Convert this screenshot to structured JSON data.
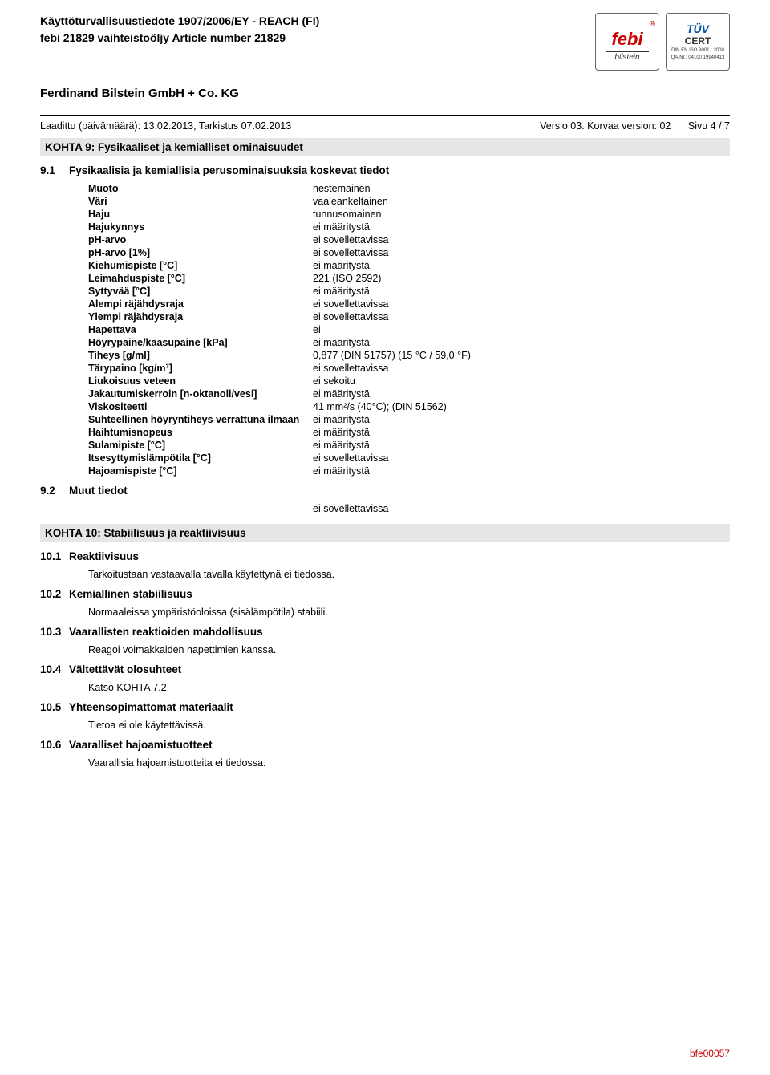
{
  "header": {
    "line1": "Käyttöturvallisuustiedote 1907/2006/EY - REACH (FI)",
    "line2": "febi 21829 vaihteistoöljy Article number 21829",
    "company": "Ferdinand Bilstein GmbH + Co. KG"
  },
  "logos": {
    "febi_name": "febi",
    "febi_reg": "®",
    "febi_sub": "bilstein",
    "tuv_top": "TÜV",
    "tuv_mid": "CERT",
    "tuv_small1": "DIN EN ISO 9001 : 2000",
    "tuv_small2": "QA-Nr.: 04100 19940413"
  },
  "meta": {
    "created": "Laadittu (päivämäärä): 13.02.2013, Tarkistus 07.02.2013",
    "version": "Versio 03. Korvaa version: 02",
    "page": "Sivu 4 / 7"
  },
  "section9": {
    "title": "KOHTA 9: Fysikaaliset ja kemialliset ominaisuudet",
    "s91_num": "9.1",
    "s91": "Fysikaalisia ja kemiallisia perusominaisuuksia koskevat tiedot",
    "props": [
      {
        "label": "Muoto",
        "val": "nestemäinen"
      },
      {
        "label": "Väri",
        "val": "vaaleankeltainen"
      },
      {
        "label": "Haju",
        "val": "tunnusomainen"
      },
      {
        "label": "Hajukynnys",
        "val": "ei määritystä"
      },
      {
        "label": "pH-arvo",
        "val": "ei sovellettavissa"
      },
      {
        "label": "pH-arvo [1%]",
        "val": "ei sovellettavissa"
      },
      {
        "label": "Kiehumispiste [°C]",
        "val": "ei määritystä"
      },
      {
        "label": "Leimahduspiste [°C]",
        "val": "221 (ISO 2592)"
      },
      {
        "label": "Syttyvää [°C]",
        "val": "ei määritystä"
      },
      {
        "label": "Alempi räjähdysraja",
        "val": "ei sovellettavissa"
      },
      {
        "label": "Ylempi räjähdysraja",
        "val": "ei sovellettavissa"
      },
      {
        "label": "Hapettava",
        "val": "ei"
      },
      {
        "label": "Höyrypaine/kaasupaine [kPa]",
        "val": "ei määritystä"
      },
      {
        "label": "Tiheys [g/ml]",
        "val": "0,877 (DIN 51757) (15 °C / 59,0 °F)"
      },
      {
        "label": "Tärypaino [kg/m³]",
        "val": "ei sovellettavissa"
      },
      {
        "label": "Liukoisuus veteen",
        "val": "ei sekoitu"
      },
      {
        "label": "Jakautumiskerroin [n-oktanoli/vesi]",
        "val": "ei määritystä"
      },
      {
        "label": "Viskositeetti",
        "val": "41 mm²/s (40°C); (DIN 51562)"
      },
      {
        "label": "Suhteellinen höyryntiheys verrattuna ilmaan",
        "val": "ei määritystä"
      },
      {
        "label": "Haihtumisnopeus",
        "val": "ei määritystä"
      },
      {
        "label": "Sulamipiste [°C]",
        "val": "ei määritystä"
      },
      {
        "label": "Itsesyttymislämpötila [°C]",
        "val": "ei sovellettavissa"
      },
      {
        "label": "Hajoamispiste [°C]",
        "val": "ei määritystä"
      }
    ],
    "s92_num": "9.2",
    "s92": "Muut tiedot",
    "s92_val": "ei sovellettavissa"
  },
  "section10": {
    "title": "KOHTA 10: Stabiilisuus ja reaktiivisuus",
    "items": [
      {
        "num": "10.1",
        "title": "Reaktiivisuus",
        "text": "Tarkoitustaan vastaavalla tavalla käytettynä ei tiedossa."
      },
      {
        "num": "10.2",
        "title": "Kemiallinen stabiilisuus",
        "text": "Normaaleissa ympäristöoloissa (sisälämpötila) stabiili."
      },
      {
        "num": "10.3",
        "title": "Vaarallisten reaktioiden mahdollisuus",
        "text": "Reagoi voimakkaiden hapettimien kanssa."
      },
      {
        "num": "10.4",
        "title": "Vältettävät olosuhteet",
        "text": "Katso KOHTA 7.2."
      },
      {
        "num": "10.5",
        "title": "Yhteensopimattomat materiaalit",
        "text": "Tietoa ei ole käytettävissä."
      },
      {
        "num": "10.6",
        "title": "Vaaralliset hajoamistuotteet",
        "text": "Vaarallisia hajoamistuotteita ei tiedossa."
      }
    ]
  },
  "footer": {
    "id": "bfe00057"
  }
}
